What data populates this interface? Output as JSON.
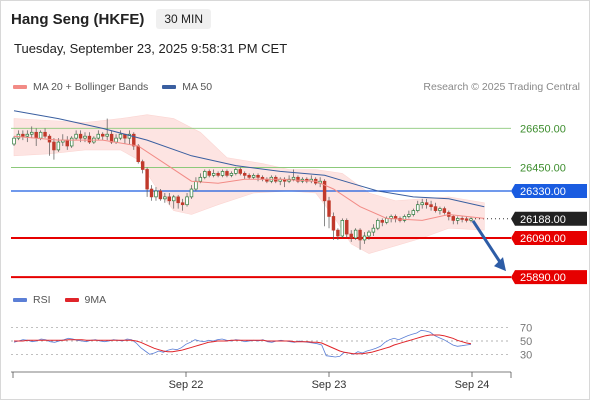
{
  "header": {
    "title": "Hang Seng (HKFE)",
    "timeframe": "30 MIN",
    "datetime": "Tuesday, September 23, 2025 9:58:31 PM CET"
  },
  "legend": {
    "items": [
      {
        "label": "MA 20 + Bollinger Bands",
        "color": "#f28b86"
      },
      {
        "label": "MA 50",
        "color": "#3a5fa0"
      }
    ],
    "copyright": "Research © 2025 Trading Central"
  },
  "indicator_legend": {
    "items": [
      {
        "label": "RSI",
        "color": "#5b7fd6"
      },
      {
        "label": "9MA",
        "color": "#e0252a"
      }
    ]
  },
  "colors": {
    "green_level": "#8cc97a",
    "blue_level": "#1a5ce0",
    "red_level": "#e60000",
    "current_price_bg": "#222222",
    "bollinger_fill": "#fde0de",
    "ma20": "#f28b86",
    "ma50": "#3a5fa0",
    "rsi": "#5b7fd6",
    "rsi_ma": "#e0252a",
    "candle_up": "#8a2b1e",
    "candle_down": "#c0392b",
    "arrow": "#2d5ca6"
  },
  "chart_data": [
    {
      "type": "candlestick",
      "title": "Hang Seng (HKFE)",
      "timeframe": "30 MIN",
      "x_tick_labels": [
        "Sep 22",
        "Sep 23",
        "Sep 24"
      ],
      "y_tick_labels": [
        "26650.00",
        "26450.00"
      ],
      "ylim": [
        25860,
        26800
      ],
      "current_price": {
        "label": "26188.00",
        "value": 26188
      },
      "levels": [
        {
          "label": "26650.00",
          "value": 26650,
          "style": "green",
          "boxed": false
        },
        {
          "label": "26450.00",
          "value": 26450,
          "style": "green",
          "boxed": false
        },
        {
          "label": "26330.00",
          "value": 26330,
          "style": "blue",
          "boxed": true
        },
        {
          "label": "26090.00",
          "value": 26090,
          "style": "red",
          "boxed": true
        },
        {
          "label": "25890.00",
          "value": 25890,
          "style": "red",
          "boxed": true
        }
      ],
      "projection": {
        "from": 26188,
        "to": 25890
      },
      "candles": [
        [
          26570,
          26600,
          26560,
          26610
        ],
        [
          26600,
          26620,
          26590,
          26640
        ],
        [
          26620,
          26610,
          26590,
          26640
        ],
        [
          26610,
          26620,
          26580,
          26640
        ],
        [
          26620,
          26630,
          26600,
          26660
        ],
        [
          26630,
          26600,
          26560,
          26650
        ],
        [
          26600,
          26630,
          26590,
          26640
        ],
        [
          26630,
          26610,
          26600,
          26650
        ],
        [
          26610,
          26580,
          26510,
          26620
        ],
        [
          26580,
          26540,
          26490,
          26600
        ],
        [
          26540,
          26580,
          26530,
          26600
        ],
        [
          26580,
          26590,
          26560,
          26620
        ],
        [
          26590,
          26560,
          26540,
          26610
        ],
        [
          26560,
          26600,
          26550,
          26610
        ],
        [
          26600,
          26620,
          26590,
          26640
        ],
        [
          26620,
          26600,
          26580,
          26640
        ],
        [
          26600,
          26610,
          26580,
          26630
        ],
        [
          26610,
          26580,
          26570,
          26630
        ],
        [
          26580,
          26600,
          26570,
          26610
        ],
        [
          26600,
          26620,
          26590,
          26640
        ],
        [
          26620,
          26610,
          26590,
          26630
        ],
        [
          26610,
          26620,
          26590,
          26700
        ],
        [
          26620,
          26580,
          26570,
          26640
        ],
        [
          26580,
          26600,
          26570,
          26620
        ],
        [
          26600,
          26620,
          26590,
          26640
        ],
        [
          26620,
          26600,
          26570,
          26620
        ],
        [
          26600,
          26620,
          26570,
          26640
        ],
        [
          26620,
          26560,
          26540,
          26630
        ],
        [
          26560,
          26480,
          26470,
          26570
        ],
        [
          26480,
          26440,
          26420,
          26490
        ],
        [
          26440,
          26340,
          26300,
          26450
        ],
        [
          26340,
          26300,
          26280,
          26360
        ],
        [
          26300,
          26330,
          26280,
          26350
        ],
        [
          26330,
          26290,
          26280,
          26340
        ],
        [
          26290,
          26300,
          26270,
          26320
        ],
        [
          26300,
          26280,
          26260,
          26320
        ],
        [
          26280,
          26300,
          26240,
          26310
        ],
        [
          26300,
          26270,
          26240,
          26310
        ],
        [
          26270,
          26260,
          26230,
          26290
        ],
        [
          26260,
          26300,
          26250,
          26320
        ],
        [
          26300,
          26340,
          26290,
          26360
        ],
        [
          26340,
          26380,
          26330,
          26400
        ],
        [
          26380,
          26400,
          26370,
          26420
        ],
        [
          26400,
          26430,
          26390,
          26440
        ],
        [
          26430,
          26410,
          26400,
          26440
        ],
        [
          26410,
          26420,
          26400,
          26440
        ],
        [
          26420,
          26410,
          26400,
          26430
        ],
        [
          26410,
          26430,
          26400,
          26440
        ],
        [
          26430,
          26410,
          26400,
          26440
        ],
        [
          26410,
          26420,
          26400,
          26430
        ],
        [
          26420,
          26440,
          26410,
          26450
        ],
        [
          26440,
          26420,
          26410,
          26450
        ],
        [
          26420,
          26410,
          26390,
          26430
        ],
        [
          26410,
          26400,
          26390,
          26420
        ],
        [
          26400,
          26410,
          26390,
          26420
        ],
        [
          26410,
          26400,
          26380,
          26420
        ],
        [
          26400,
          26390,
          26380,
          26410
        ],
        [
          26390,
          26380,
          26370,
          26400
        ],
        [
          26380,
          26400,
          26370,
          26410
        ],
        [
          26400,
          26380,
          26370,
          26410
        ],
        [
          26380,
          26390,
          26360,
          26400
        ],
        [
          26390,
          26380,
          26350,
          26400
        ],
        [
          26380,
          26390,
          26370,
          26410
        ],
        [
          26390,
          26400,
          26380,
          26440
        ],
        [
          26400,
          26380,
          26370,
          26410
        ],
        [
          26380,
          26390,
          26370,
          26400
        ],
        [
          26390,
          26380,
          26370,
          26400
        ],
        [
          26380,
          26390,
          26370,
          26410
        ],
        [
          26390,
          26370,
          26360,
          26400
        ],
        [
          26370,
          26380,
          26350,
          26400
        ],
        [
          26380,
          26280,
          26150,
          26390
        ],
        [
          26280,
          26200,
          26140,
          26300
        ],
        [
          26200,
          26130,
          26080,
          26220
        ],
        [
          26130,
          26100,
          26080,
          26140
        ],
        [
          26100,
          26180,
          26090,
          26190
        ],
        [
          26180,
          26110,
          26090,
          26190
        ],
        [
          26110,
          26090,
          26070,
          26130
        ],
        [
          26090,
          26130,
          26080,
          26140
        ],
        [
          26130,
          26080,
          26030,
          26140
        ],
        [
          26080,
          26100,
          26060,
          26120
        ],
        [
          26100,
          26120,
          26080,
          26130
        ],
        [
          26120,
          26140,
          26100,
          26160
        ],
        [
          26140,
          26180,
          26130,
          26190
        ],
        [
          26180,
          26170,
          26150,
          26190
        ],
        [
          26170,
          26190,
          26160,
          26200
        ],
        [
          26190,
          26200,
          26170,
          26210
        ],
        [
          26200,
          26190,
          26170,
          26210
        ],
        [
          26190,
          26180,
          26170,
          26200
        ],
        [
          26180,
          26200,
          26170,
          26210
        ],
        [
          26200,
          26210,
          26190,
          26230
        ],
        [
          26210,
          26230,
          26200,
          26240
        ],
        [
          26230,
          26260,
          26220,
          26280
        ],
        [
          26260,
          26270,
          26240,
          26290
        ],
        [
          26270,
          26260,
          26240,
          26290
        ],
        [
          26260,
          26250,
          26230,
          26280
        ],
        [
          26250,
          26230,
          26220,
          26270
        ],
        [
          26230,
          26240,
          26210,
          26250
        ],
        [
          26240,
          26220,
          26210,
          26250
        ],
        [
          26220,
          26200,
          26180,
          26230
        ],
        [
          26200,
          26180,
          26160,
          26210
        ],
        [
          26180,
          26190,
          26160,
          26200
        ],
        [
          26190,
          26188,
          26170,
          26200
        ],
        [
          26188,
          26180,
          26170,
          26200
        ],
        [
          26180,
          26188,
          26170,
          26200
        ]
      ],
      "ma20": [
        [
          0,
          26610
        ],
        [
          10,
          26590
        ],
        [
          20,
          26590
        ],
        [
          28,
          26560
        ],
        [
          34,
          26470
        ],
        [
          40,
          26380
        ],
        [
          46,
          26370
        ],
        [
          52,
          26390
        ],
        [
          60,
          26390
        ],
        [
          68,
          26380
        ],
        [
          72,
          26340
        ],
        [
          78,
          26250
        ],
        [
          84,
          26190
        ],
        [
          92,
          26180
        ],
        [
          98,
          26210
        ],
        [
          106,
          26190
        ]
      ],
      "bb_upper": [
        [
          0,
          26700
        ],
        [
          8,
          26690
        ],
        [
          16,
          26680
        ],
        [
          24,
          26700
        ],
        [
          30,
          26720
        ],
        [
          36,
          26700
        ],
        [
          42,
          26630
        ],
        [
          48,
          26500
        ],
        [
          56,
          26470
        ],
        [
          62,
          26440
        ],
        [
          68,
          26440
        ],
        [
          74,
          26420
        ],
        [
          80,
          26320
        ],
        [
          86,
          26280
        ],
        [
          92,
          26290
        ],
        [
          98,
          26300
        ],
        [
          106,
          26270
        ]
      ],
      "bb_lower": [
        [
          0,
          26510
        ],
        [
          8,
          26520
        ],
        [
          16,
          26540
        ],
        [
          24,
          26540
        ],
        [
          28,
          26490
        ],
        [
          32,
          26350
        ],
        [
          36,
          26230
        ],
        [
          40,
          26210
        ],
        [
          46,
          26260
        ],
        [
          54,
          26320
        ],
        [
          62,
          26330
        ],
        [
          68,
          26320
        ],
        [
          72,
          26200
        ],
        [
          76,
          26060
        ],
        [
          80,
          26010
        ],
        [
          86,
          26050
        ],
        [
          92,
          26090
        ],
        [
          98,
          26140
        ],
        [
          106,
          26130
        ]
      ],
      "ma50": [
        [
          0,
          26740
        ],
        [
          10,
          26700
        ],
        [
          20,
          26650
        ],
        [
          30,
          26590
        ],
        [
          40,
          26510
        ],
        [
          50,
          26460
        ],
        [
          60,
          26430
        ],
        [
          70,
          26410
        ],
        [
          76,
          26370
        ],
        [
          82,
          26330
        ],
        [
          90,
          26300
        ],
        [
          98,
          26290
        ],
        [
          106,
          26250
        ]
      ]
    },
    {
      "type": "line",
      "title": "",
      "y_tick_labels": [
        "70",
        "50",
        "30"
      ],
      "ylim": [
        20,
        80
      ],
      "series": [
        {
          "name": "RSI",
          "values": [
            48,
            50,
            52,
            51,
            49,
            50,
            53,
            52,
            49,
            48,
            50,
            52,
            54,
            53,
            51,
            50,
            49,
            51,
            52,
            50,
            49,
            50,
            52,
            51,
            50,
            53,
            52,
            47,
            40,
            35,
            30,
            32,
            35,
            33,
            36,
            38,
            37,
            40,
            45,
            48,
            52,
            50,
            49,
            51,
            50,
            52,
            53,
            51,
            50,
            52,
            51,
            49,
            50,
            51,
            50,
            52,
            49,
            48,
            50,
            51,
            50,
            49,
            48,
            50,
            49,
            48,
            47,
            46,
            44,
            28,
            27,
            26,
            27,
            33,
            32,
            30,
            34,
            32,
            35,
            37,
            39,
            42,
            48,
            52,
            54,
            52,
            55,
            58,
            60,
            62,
            66,
            65,
            63,
            58,
            55,
            52,
            48,
            44,
            42,
            43,
            44,
            45
          ]
        },
        {
          "name": "9MA",
          "values": [
            50,
            50,
            50,
            51,
            51,
            51,
            51,
            51,
            51,
            51,
            51,
            51,
            52,
            52,
            52,
            52,
            51,
            51,
            51,
            51,
            51,
            51,
            51,
            51,
            51,
            51,
            51,
            50,
            48,
            45,
            42,
            39,
            37,
            35,
            34,
            34,
            35,
            36,
            38,
            40,
            42,
            44,
            46,
            48,
            49,
            50,
            50,
            50,
            51,
            51,
            51,
            51,
            51,
            51,
            51,
            51,
            50,
            50,
            50,
            50,
            50,
            50,
            49,
            49,
            49,
            49,
            48,
            48,
            47,
            44,
            41,
            38,
            35,
            33,
            32,
            31,
            31,
            31,
            32,
            33,
            35,
            37,
            39,
            41,
            44,
            46,
            48,
            50,
            52,
            54,
            56,
            58,
            59,
            59,
            59,
            58,
            56,
            54,
            51,
            49,
            47,
            46
          ]
        }
      ]
    }
  ]
}
